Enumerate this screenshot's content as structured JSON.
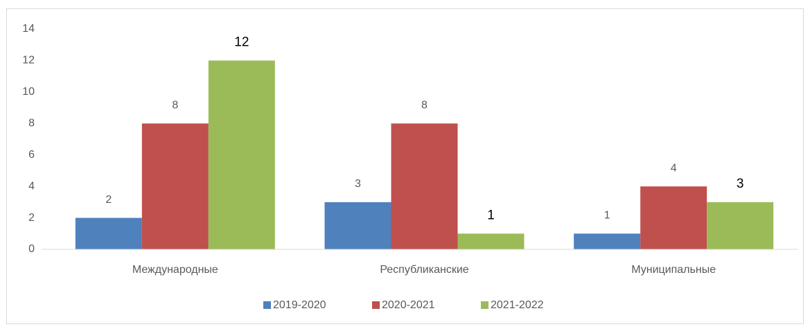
{
  "chart_data": {
    "type": "bar",
    "categories": [
      "Международные",
      "Республиканские",
      "Муниципальные"
    ],
    "series": [
      {
        "name": "2019-2020",
        "color": "#4f81bd",
        "values": [
          2,
          3,
          1
        ]
      },
      {
        "name": "2020-2021",
        "color": "#c0504d",
        "values": [
          8,
          8,
          4
        ]
      },
      {
        "name": "2021-2022",
        "color": "#9bbb59",
        "values": [
          12,
          1,
          3
        ]
      }
    ],
    "ylim": [
      0,
      14
    ],
    "yticks": [
      0,
      2,
      4,
      6,
      8,
      10,
      12,
      14
    ],
    "grid": false,
    "legend": "bottom"
  }
}
